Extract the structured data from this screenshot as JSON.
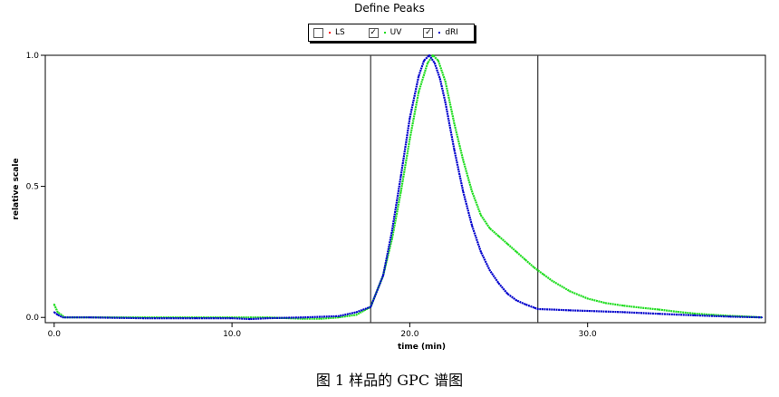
{
  "caption": "图 1  样品的 GPC 谱图",
  "legend": [
    {
      "label": "LS",
      "checked": false,
      "color": "#ff0000"
    },
    {
      "label": "UV",
      "checked": true,
      "color": "#22dd22"
    },
    {
      "label": "dRI",
      "checked": true,
      "color": "#0000cc"
    }
  ],
  "chart_data": {
    "type": "line",
    "title": "Define Peaks",
    "xlabel": "time (min)",
    "ylabel": "relative scale",
    "xlim": [
      -0.5,
      40
    ],
    "ylim": [
      -0.02,
      1.0
    ],
    "x_ticks": [
      {
        "v": 0,
        "label": "0.0"
      },
      {
        "v": 10,
        "label": "10.0"
      },
      {
        "v": 20,
        "label": "20.0"
      },
      {
        "v": 30,
        "label": "30.0"
      }
    ],
    "y_ticks": [
      {
        "v": 0,
        "label": "0.0"
      },
      {
        "v": 0.5,
        "label": "0.5"
      },
      {
        "v": 1.0,
        "label": "1.0"
      }
    ],
    "peak_limits": [
      17.8,
      27.2
    ],
    "grid": false,
    "series": [
      {
        "name": "UV",
        "color": "#22dd22",
        "x": [
          0,
          0.2,
          0.6,
          2,
          5,
          8,
          10,
          12,
          14,
          15,
          16,
          17,
          17.8,
          18.5,
          19,
          19.5,
          20,
          20.5,
          21,
          21.3,
          21.6,
          22,
          22.5,
          23,
          23.5,
          24,
          24.5,
          25,
          25.5,
          26,
          26.5,
          27,
          27.5,
          28,
          29,
          30,
          31,
          32,
          33,
          34,
          35,
          36,
          37,
          38,
          39,
          39.8
        ],
        "y": [
          0.05,
          0.02,
          0.0,
          0.0,
          0.0,
          0.0,
          0.0,
          0.0,
          -0.005,
          -0.005,
          0.0,
          0.01,
          0.04,
          0.16,
          0.3,
          0.48,
          0.68,
          0.86,
          0.97,
          1.0,
          0.98,
          0.9,
          0.74,
          0.6,
          0.48,
          0.39,
          0.34,
          0.31,
          0.28,
          0.25,
          0.22,
          0.19,
          0.165,
          0.14,
          0.1,
          0.072,
          0.055,
          0.045,
          0.037,
          0.03,
          0.022,
          0.015,
          0.01,
          0.006,
          0.003,
          0.0
        ]
      },
      {
        "name": "dRI",
        "color": "#0000cc",
        "x": [
          0,
          0.2,
          0.5,
          2,
          5,
          8,
          10,
          11,
          12,
          14,
          16,
          17,
          17.8,
          18.5,
          19,
          19.5,
          20,
          20.5,
          20.8,
          21.1,
          21.4,
          21.7,
          22,
          22.5,
          23,
          23.5,
          24,
          24.5,
          25,
          25.5,
          26,
          26.5,
          27,
          27.2,
          28,
          29,
          30,
          32,
          34,
          36,
          38,
          39.8
        ],
        "y": [
          0.02,
          0.01,
          0.0,
          0.0,
          -0.003,
          -0.003,
          -0.003,
          -0.006,
          -0.003,
          0.0,
          0.005,
          0.02,
          0.04,
          0.16,
          0.33,
          0.54,
          0.76,
          0.92,
          0.98,
          1.0,
          0.97,
          0.91,
          0.82,
          0.64,
          0.48,
          0.35,
          0.25,
          0.18,
          0.13,
          0.09,
          0.065,
          0.05,
          0.037,
          0.032,
          0.03,
          0.027,
          0.025,
          0.02,
          0.014,
          0.008,
          0.003,
          0.0
        ]
      }
    ]
  }
}
